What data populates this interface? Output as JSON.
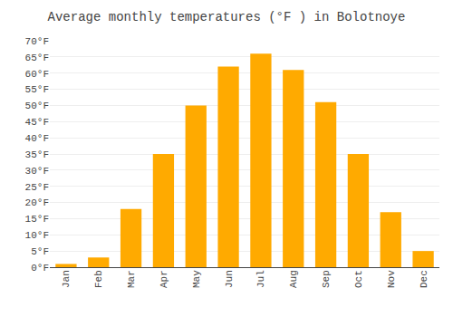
{
  "chart_data": {
    "type": "bar",
    "title": "Average monthly temperatures (°F ) in Bolotnoye",
    "categories": [
      "Jan",
      "Feb",
      "Mar",
      "Apr",
      "May",
      "Jun",
      "Jul",
      "Aug",
      "Sep",
      "Oct",
      "Nov",
      "Dec"
    ],
    "values": [
      1,
      3,
      18,
      35,
      50,
      62,
      66,
      61,
      51,
      35,
      17,
      5
    ],
    "color": "#FFAA00",
    "ylim": [
      0,
      70
    ],
    "yticks": [
      {
        "value": 0,
        "label": "0°F"
      },
      {
        "value": 5,
        "label": "5°F"
      },
      {
        "value": 10,
        "label": "10°F"
      },
      {
        "value": 15,
        "label": "15°F"
      },
      {
        "value": 20,
        "label": "20°F"
      },
      {
        "value": 25,
        "label": "25°F"
      },
      {
        "value": 30,
        "label": "30°F"
      },
      {
        "value": 35,
        "label": "35°F"
      },
      {
        "value": 40,
        "label": "40°F"
      },
      {
        "value": 45,
        "label": "45°F"
      },
      {
        "value": 50,
        "label": "50°F"
      },
      {
        "value": 55,
        "label": "55°F"
      },
      {
        "value": 60,
        "label": "60°F"
      },
      {
        "value": 65,
        "label": "65°F"
      },
      {
        "value": 70,
        "label": "70°F"
      }
    ],
    "grid": true
  }
}
